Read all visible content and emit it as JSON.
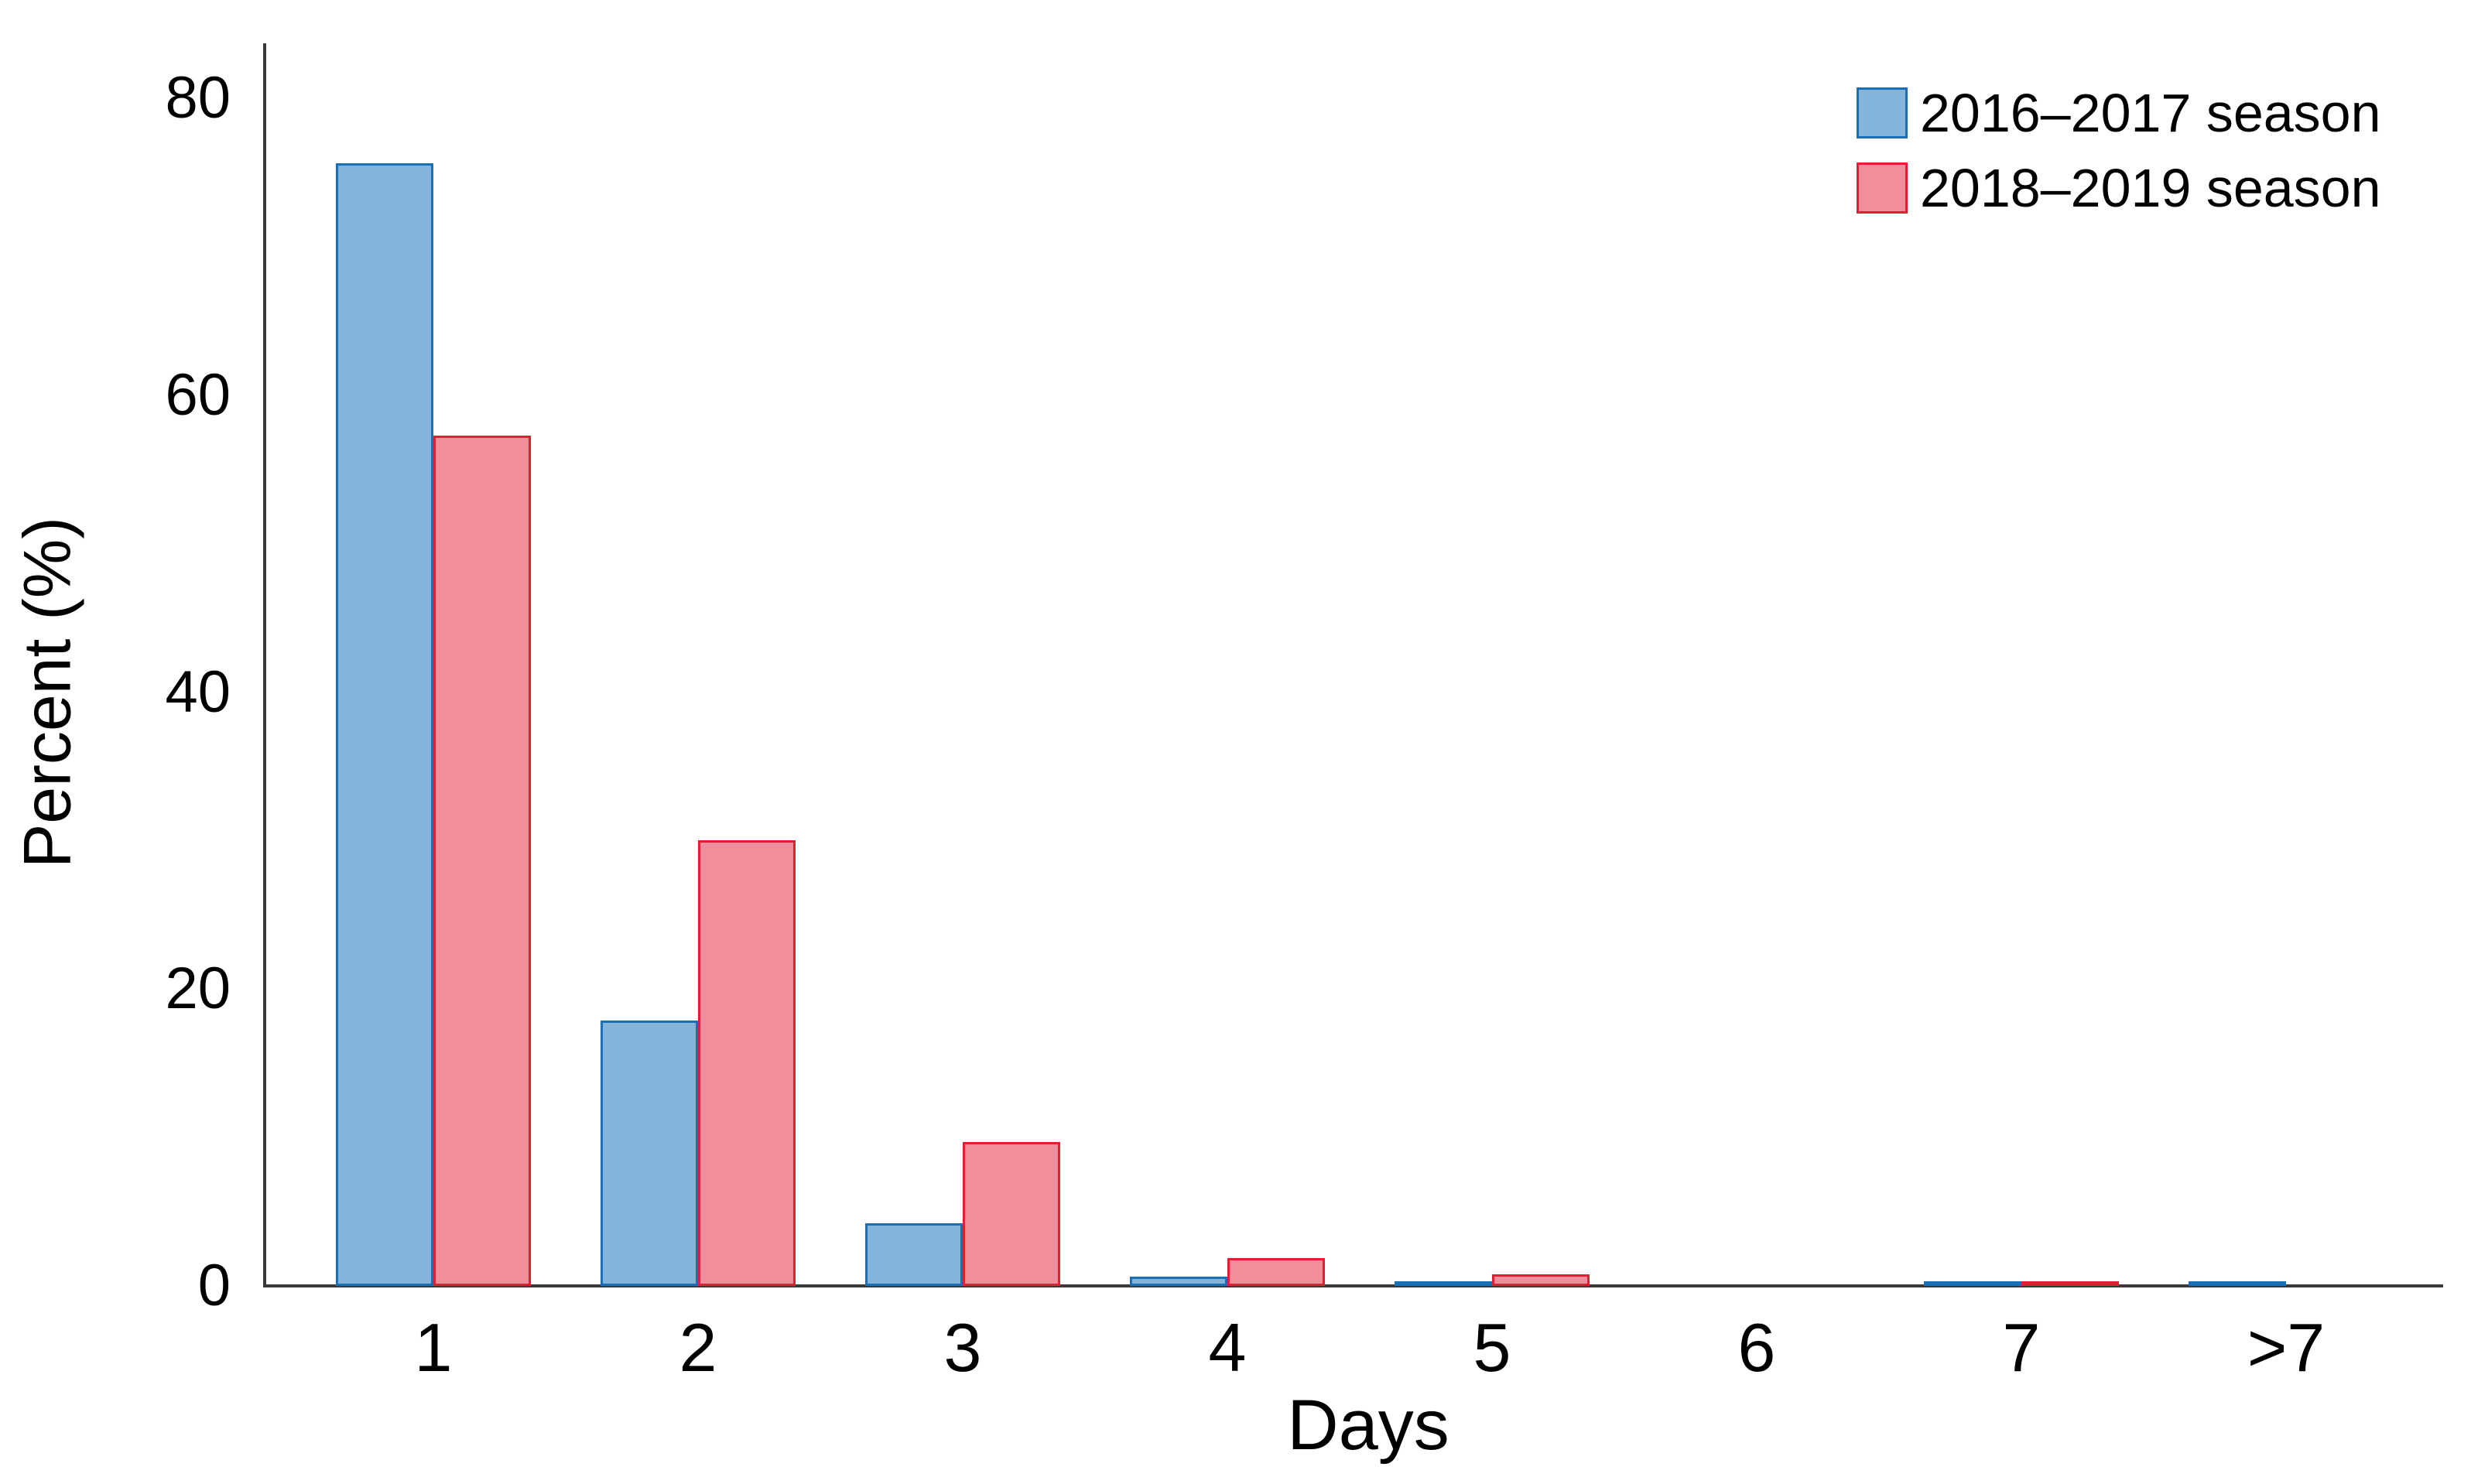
{
  "chart_data": {
    "type": "bar",
    "title": "",
    "xlabel": "Days",
    "ylabel": "Percent (%)",
    "categories": [
      "1",
      "2",
      "3",
      "4",
      "5",
      "6",
      "7",
      ">7"
    ],
    "series": [
      {
        "name": "2016–2017 season",
        "fill": "#85b4da",
        "stroke": "#1a6fb5",
        "values": [
          75.6,
          17.9,
          4.2,
          0.6,
          0.3,
          0,
          0.2,
          0.2
        ]
      },
      {
        "name": "2018–2019 season",
        "fill": "#f18e9b",
        "stroke": "#e41e32",
        "values": [
          57.3,
          30.0,
          9.7,
          1.9,
          0.8,
          0,
          0.15,
          0
        ]
      }
    ],
    "ylim": [
      0,
      80
    ],
    "yticks": [
      "0",
      "20",
      "40",
      "60",
      "80"
    ],
    "grid": false,
    "legend_position": "top-right",
    "axis_color": "#3a3a3a",
    "background": "#ffffff"
  }
}
